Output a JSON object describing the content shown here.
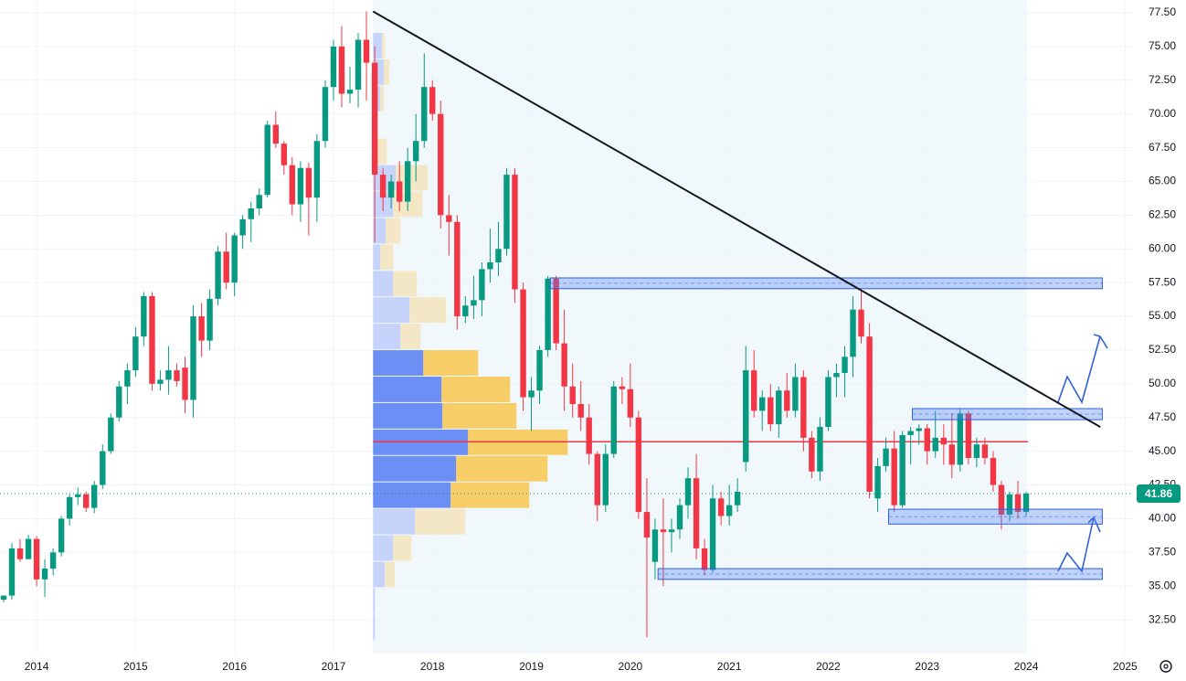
{
  "chart_data": {
    "type": "candlestick",
    "xlim": [
      2013.63,
      2025.08
    ],
    "ylim": [
      30.0,
      78.45
    ],
    "xticks": [
      2014,
      2015,
      2016,
      2017,
      2018,
      2019,
      2020,
      2021,
      2022,
      2023,
      2024,
      2025
    ],
    "yticks": [
      {
        "value": 32.5,
        "label": "32.50"
      },
      {
        "value": 35,
        "label": "35.00"
      },
      {
        "value": 37.5,
        "label": "37.50"
      },
      {
        "value": 40,
        "label": "40.00"
      },
      {
        "value": 42.5,
        "label": "42.50"
      },
      {
        "value": 45,
        "label": "45.00"
      },
      {
        "value": 47.5,
        "label": "47.50"
      },
      {
        "value": 50,
        "label": "50.00"
      },
      {
        "value": 52.5,
        "label": "52.50"
      },
      {
        "value": 55,
        "label": "55.00"
      },
      {
        "value": 57.5,
        "label": "57.50"
      },
      {
        "value": 60,
        "label": "60.00"
      },
      {
        "value": 62.5,
        "label": "62.50"
      },
      {
        "value": 65,
        "label": "65.00"
      },
      {
        "value": 67.5,
        "label": "67.50"
      },
      {
        "value": 70,
        "label": "70.00"
      },
      {
        "value": 72.5,
        "label": "72.50"
      },
      {
        "value": 75,
        "label": "75.00"
      },
      {
        "value": 77.5,
        "label": "77.50"
      }
    ],
    "grid": true,
    "up_color": "#089981",
    "down_color": "#f23645",
    "x": [
      2013.667,
      2013.75,
      2013.833,
      2013.917,
      2014.0,
      2014.083,
      2014.167,
      2014.25,
      2014.333,
      2014.417,
      2014.5,
      2014.583,
      2014.667,
      2014.75,
      2014.833,
      2014.917,
      2015.0,
      2015.083,
      2015.167,
      2015.25,
      2015.333,
      2015.417,
      2015.5,
      2015.583,
      2015.667,
      2015.75,
      2015.833,
      2015.917,
      2016.0,
      2016.083,
      2016.167,
      2016.25,
      2016.333,
      2016.417,
      2016.5,
      2016.583,
      2016.667,
      2016.75,
      2016.833,
      2016.917,
      2017.0,
      2017.083,
      2017.167,
      2017.25,
      2017.333,
      2017.417,
      2017.5,
      2017.583,
      2017.667,
      2017.75,
      2017.833,
      2017.917,
      2018.0,
      2018.083,
      2018.167,
      2018.25,
      2018.333,
      2018.417,
      2018.5,
      2018.583,
      2018.667,
      2018.75,
      2018.833,
      2018.917,
      2019.0,
      2019.083,
      2019.167,
      2019.25,
      2019.333,
      2019.417,
      2019.5,
      2019.583,
      2019.667,
      2019.75,
      2019.833,
      2019.917,
      2020.0,
      2020.083,
      2020.167,
      2020.25,
      2020.333,
      2020.417,
      2020.5,
      2020.583,
      2020.667,
      2020.75,
      2020.833,
      2020.917,
      2021.0,
      2021.083,
      2021.167,
      2021.25,
      2021.333,
      2021.417,
      2021.5,
      2021.583,
      2021.667,
      2021.75,
      2021.833,
      2021.917,
      2022.0,
      2022.083,
      2022.167,
      2022.25,
      2022.333,
      2022.417,
      2022.5,
      2022.583,
      2022.667,
      2022.75,
      2022.833,
      2022.917,
      2023.0,
      2023.083,
      2023.167,
      2023.25,
      2023.333,
      2023.417,
      2023.5,
      2023.583,
      2023.667,
      2023.75,
      2023.833,
      2023.917,
      2024.0
    ],
    "open": [
      34.0,
      34.3,
      37.8,
      37.0,
      38.5,
      35.5,
      36.3,
      37.5,
      40.0,
      41.6,
      41.8,
      40.8,
      42.5,
      45.0,
      47.5,
      49.8,
      51.0,
      53.5,
      56.5,
      50.0,
      50.3,
      51.0,
      51.2,
      48.8,
      55.0,
      53.2,
      56.3,
      59.8,
      57.5,
      61.0,
      62.2,
      63.0,
      64.0,
      69.2,
      67.8,
      66.2,
      63.3,
      66.0,
      63.8,
      68.0,
      72.0,
      75.0,
      71.5,
      71.8,
      75.5,
      73.8,
      65.5,
      63.8,
      65.0,
      63.5,
      66.5,
      68.0,
      72.0,
      70.0,
      62.5,
      62.0,
      55.0,
      55.8,
      56.2,
      58.5,
      59.0,
      60.0,
      65.5,
      57.0,
      49.0,
      49.5,
      52.5,
      57.8,
      53.0,
      49.8,
      48.5,
      47.5,
      44.8,
      41.0,
      44.8,
      49.8,
      49.6,
      47.5,
      40.5,
      36.8,
      39.2,
      39.0,
      39.2,
      41.0,
      43.0,
      37.8,
      36.2,
      41.5,
      40.2,
      41.0,
      44.2,
      51.0,
      48.0,
      49.0,
      47.0,
      49.5,
      48.0,
      50.5,
      46.0,
      43.5,
      46.8,
      50.5,
      50.8,
      52.0,
      55.5,
      53.5,
      41.5,
      43.9,
      45.2,
      41.0,
      46.2,
      46.5,
      46.7,
      45.0,
      46.0,
      45.5,
      44.0,
      47.8,
      44.5,
      45.5,
      44.5,
      42.5,
      40.3,
      41.8,
      40.5
    ],
    "high": [
      34.3,
      38.2,
      38.5,
      38.8,
      38.7,
      37.0,
      37.8,
      40.2,
      41.8,
      42.3,
      42.0,
      42.8,
      45.5,
      47.8,
      50.2,
      51.5,
      54.2,
      56.8,
      56.8,
      51.0,
      52.8,
      51.5,
      52.0,
      55.8,
      56.0,
      57.0,
      60.2,
      61.2,
      61.2,
      62.5,
      63.5,
      64.5,
      69.5,
      70.2,
      68.0,
      66.8,
      66.5,
      66.4,
      68.5,
      72.5,
      75.5,
      76.5,
      73.5,
      76.0,
      77.6,
      75.0,
      66.0,
      65.5,
      66.5,
      67.5,
      70.0,
      74.5,
      72.5,
      71.0,
      64.0,
      62.5,
      56.5,
      58.0,
      59.0,
      61.5,
      62.0,
      66.0,
      66.0,
      57.5,
      50.5,
      52.8,
      58.0,
      58.0,
      55.5,
      51.5,
      50.2,
      48.5,
      45.0,
      45.5,
      50.2,
      50.5,
      51.5,
      48.0,
      43.0,
      40.0,
      41.5,
      40.0,
      41.5,
      43.8,
      44.8,
      38.5,
      42.5,
      42.0,
      42.5,
      43.0,
      52.8,
      52.5,
      49.5,
      50.0,
      49.8,
      50.8,
      51.5,
      51.0,
      46.5,
      47.5,
      51.0,
      51.5,
      52.8,
      56.5,
      57.0,
      54.5,
      44.5,
      46.0,
      46.5,
      46.5,
      46.8,
      47.0,
      47.0,
      48.0,
      47.0,
      47.8,
      48.2,
      48.0,
      46.0,
      46.0,
      45.0,
      42.8,
      42.0,
      42.8,
      42.0
    ],
    "low": [
      33.8,
      34.0,
      36.8,
      37.0,
      35.0,
      34.2,
      35.8,
      37.2,
      39.5,
      41.0,
      40.5,
      40.4,
      42.2,
      44.8,
      47.2,
      48.5,
      50.5,
      52.8,
      49.5,
      49.5,
      49.2,
      49.8,
      47.8,
      47.5,
      52.0,
      52.5,
      55.8,
      57.0,
      56.5,
      60.0,
      60.5,
      62.5,
      63.8,
      67.5,
      65.5,
      62.5,
      62.0,
      61.0,
      62.0,
      67.5,
      71.0,
      70.5,
      70.8,
      70.5,
      71.0,
      60.5,
      62.8,
      63.0,
      62.8,
      62.8,
      65.0,
      67.5,
      69.5,
      61.5,
      59.5,
      54.0,
      54.5,
      54.8,
      55.0,
      57.5,
      58.0,
      59.5,
      56.0,
      48.0,
      46.5,
      48.5,
      52.0,
      52.5,
      48.0,
      47.5,
      46.5,
      44.0,
      39.8,
      40.5,
      44.5,
      48.5,
      46.8,
      40.0,
      31.2,
      35.5,
      35.0,
      37.5,
      38.5,
      40.0,
      37.0,
      35.8,
      36.0,
      39.5,
      39.5,
      40.5,
      43.5,
      47.5,
      46.5,
      46.5,
      46.0,
      47.5,
      47.5,
      45.0,
      43.0,
      42.8,
      46.5,
      49.0,
      49.0,
      50.5,
      53.0,
      41.5,
      40.5,
      43.5,
      40.5,
      40.8,
      44.0,
      45.5,
      44.0,
      44.5,
      44.0,
      43.0,
      43.5,
      44.0,
      43.8,
      44.0,
      42.0,
      39.2,
      39.8,
      40.0,
      40.2
    ],
    "close": [
      34.3,
      37.8,
      37.0,
      38.5,
      35.5,
      36.3,
      37.5,
      40.0,
      41.6,
      41.8,
      40.8,
      42.5,
      45.0,
      47.5,
      49.8,
      51.0,
      53.5,
      56.5,
      50.0,
      50.3,
      51.0,
      50.2,
      48.8,
      55.0,
      53.2,
      56.3,
      59.8,
      57.5,
      61.0,
      62.2,
      63.0,
      64.0,
      69.2,
      67.8,
      66.2,
      63.3,
      66.0,
      63.8,
      68.0,
      72.0,
      75.0,
      71.5,
      71.8,
      75.5,
      73.8,
      65.5,
      63.8,
      65.0,
      63.5,
      66.5,
      68.0,
      72.0,
      70.0,
      62.5,
      62.0,
      55.0,
      55.8,
      56.2,
      58.5,
      59.0,
      60.0,
      65.5,
      57.0,
      49.0,
      49.5,
      52.5,
      57.8,
      53.0,
      49.8,
      48.5,
      47.5,
      44.8,
      41.0,
      44.8,
      49.8,
      49.6,
      47.5,
      40.5,
      38.6,
      39.2,
      39.0,
      39.2,
      41.0,
      43.0,
      37.8,
      36.2,
      41.5,
      40.2,
      41.0,
      42.0,
      51.0,
      48.0,
      49.0,
      47.0,
      49.5,
      48.0,
      50.5,
      46.0,
      43.5,
      46.8,
      50.5,
      50.8,
      52.0,
      55.5,
      53.5,
      42.0,
      43.9,
      45.2,
      41.0,
      46.2,
      46.5,
      46.7,
      45.0,
      46.0,
      45.5,
      44.0,
      47.8,
      44.5,
      45.5,
      44.5,
      42.5,
      40.3,
      41.8,
      40.5,
      41.86
    ],
    "volume_profile": {
      "start": 2017.4,
      "edges": [
        31.0,
        32.96,
        34.92,
        36.88,
        38.84,
        40.8,
        42.76,
        44.72,
        46.68,
        48.64,
        50.6,
        52.56,
        54.52,
        56.48,
        58.44,
        60.4,
        62.36,
        64.32,
        66.28,
        68.24,
        70.2,
        72.16,
        74.12,
        76.08
      ],
      "up_volume": [
        2,
        2,
        13,
        22,
        46,
        85,
        91,
        104,
        76,
        75,
        55,
        30,
        40,
        22,
        8,
        14,
        22,
        25,
        5,
        3,
        8,
        12,
        10
      ],
      "down_volume": [
        0,
        0,
        11,
        20,
        55,
        86,
        100,
        109,
        81,
        75,
        60,
        22,
        40,
        26,
        14,
        16,
        32,
        35,
        10,
        0,
        4,
        6,
        3
      ],
      "value_area": [
        40.8,
        52.56
      ],
      "poc": 45.7,
      "poc_end": 2024.02,
      "shade": [
        2017.4,
        2024.0
      ]
    },
    "trendline": {
      "x": [
        2017.4,
        2024.75
      ],
      "y": [
        77.6,
        46.8
      ]
    },
    "zones": [
      {
        "x": [
          2019.19,
          2024.77
        ],
        "y": [
          57.05,
          57.85
        ]
      },
      {
        "x": [
          2022.85,
          2024.77
        ],
        "y": [
          47.34,
          48.16
        ]
      },
      {
        "x": [
          2022.61,
          2024.77
        ],
        "y": [
          39.6,
          40.7
        ]
      },
      {
        "x": [
          2020.28,
          2024.77
        ],
        "y": [
          35.5,
          36.3
        ]
      }
    ]
  }
}
